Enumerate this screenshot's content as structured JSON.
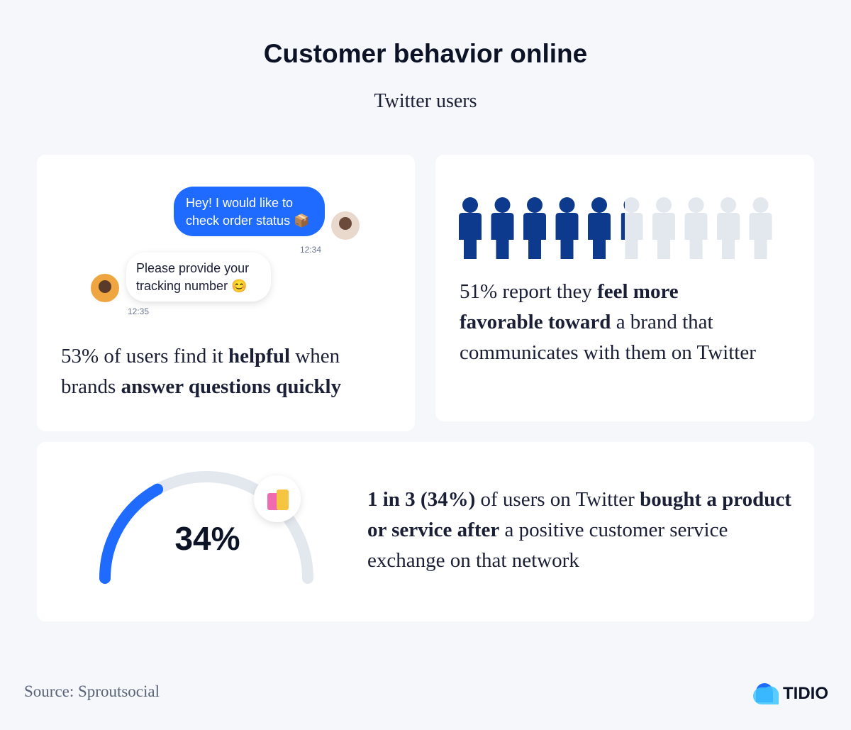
{
  "header": {
    "title": "Customer behavior online",
    "subtitle": "Twitter users"
  },
  "chat": {
    "messages": [
      {
        "lines": [
          "Hey! I would like to",
          "check order status 📦"
        ],
        "time": "12:34"
      },
      {
        "lines": [
          "Please provide your",
          "tracking number 😊"
        ],
        "time": "12:35"
      }
    ]
  },
  "cards": [
    {
      "segments": [
        {
          "t": "53% of users find it "
        },
        {
          "t": "helpful",
          "bold": true
        },
        {
          "t": " when brands "
        },
        {
          "t": "answer questions quickly",
          "bold": true
        }
      ]
    },
    {
      "segments": [
        {
          "t": "51% report they "
        },
        {
          "t": "feel more favorable toward",
          "bold": true
        },
        {
          "t": " a brand that communicates with them on Twitter"
        }
      ]
    },
    {
      "segments": [
        {
          "t": "1 in 3 (34%)",
          "bold": true
        },
        {
          "t": " of users on Twitter "
        },
        {
          "t": "bought a product or service after",
          "bold": true
        },
        {
          "t": " a positive customer service exchange on that network"
        }
      ]
    }
  ],
  "gauge": {
    "value": 34,
    "label": "34%"
  },
  "footer": {
    "source": "Source: Sproutsocial",
    "brand": "TIDIO"
  }
}
